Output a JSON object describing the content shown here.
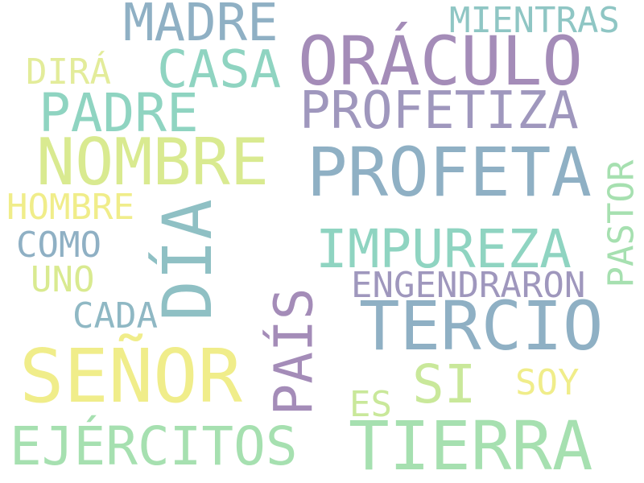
{
  "palette": {
    "slate_blue": "#8fb0c4",
    "mint": "#8fd4c1",
    "purple": "#a48cb8",
    "lime": "#d9ea90",
    "yellow": "#f0ed8a",
    "green": "#a6e0b0"
  },
  "words": [
    {
      "text": "MADRE",
      "color": "#8fb0c4"
    },
    {
      "text": "MIENTRAS",
      "color": "#8fc6c4"
    },
    {
      "text": "ORÁCULO",
      "color": "#a48cb8"
    },
    {
      "text": "CASA",
      "color": "#8fd4c1"
    },
    {
      "text": "DIRÁ",
      "color": "#e3ec9a"
    },
    {
      "text": "PADRE",
      "color": "#8fd4c1"
    },
    {
      "text": "PROFETIZA",
      "color": "#9f97bd"
    },
    {
      "text": "NOMBRE",
      "color": "#d9ea90"
    },
    {
      "text": "PROFETA",
      "color": "#8fb0c4"
    },
    {
      "text": "HOMBRE",
      "color": "#f0ed8a"
    },
    {
      "text": "DÍA",
      "color": "#8fc0c4"
    },
    {
      "text": "PASTOR",
      "color": "#a6e0b0"
    },
    {
      "text": "COMO",
      "color": "#8fb0c4"
    },
    {
      "text": "IMPUREZA",
      "color": "#8fd4c1"
    },
    {
      "text": "UNO",
      "color": "#d9ea90"
    },
    {
      "text": "ENGENDRARON",
      "color": "#9f97bd"
    },
    {
      "text": "PAÍS",
      "color": "#a48cb8"
    },
    {
      "text": "CADA",
      "color": "#8fb8c4"
    },
    {
      "text": "TERCIO",
      "color": "#8fb0c4"
    },
    {
      "text": "SEÑOR",
      "color": "#f0ed8a"
    },
    {
      "text": "SI",
      "color": "#c9e89a"
    },
    {
      "text": "SOY",
      "color": "#f0ed8a"
    },
    {
      "text": "ES",
      "color": "#c9e89a"
    },
    {
      "text": "EJÉRCITOS",
      "color": "#a6e0b0"
    },
    {
      "text": "TIERRA",
      "color": "#a6e0b0"
    }
  ]
}
